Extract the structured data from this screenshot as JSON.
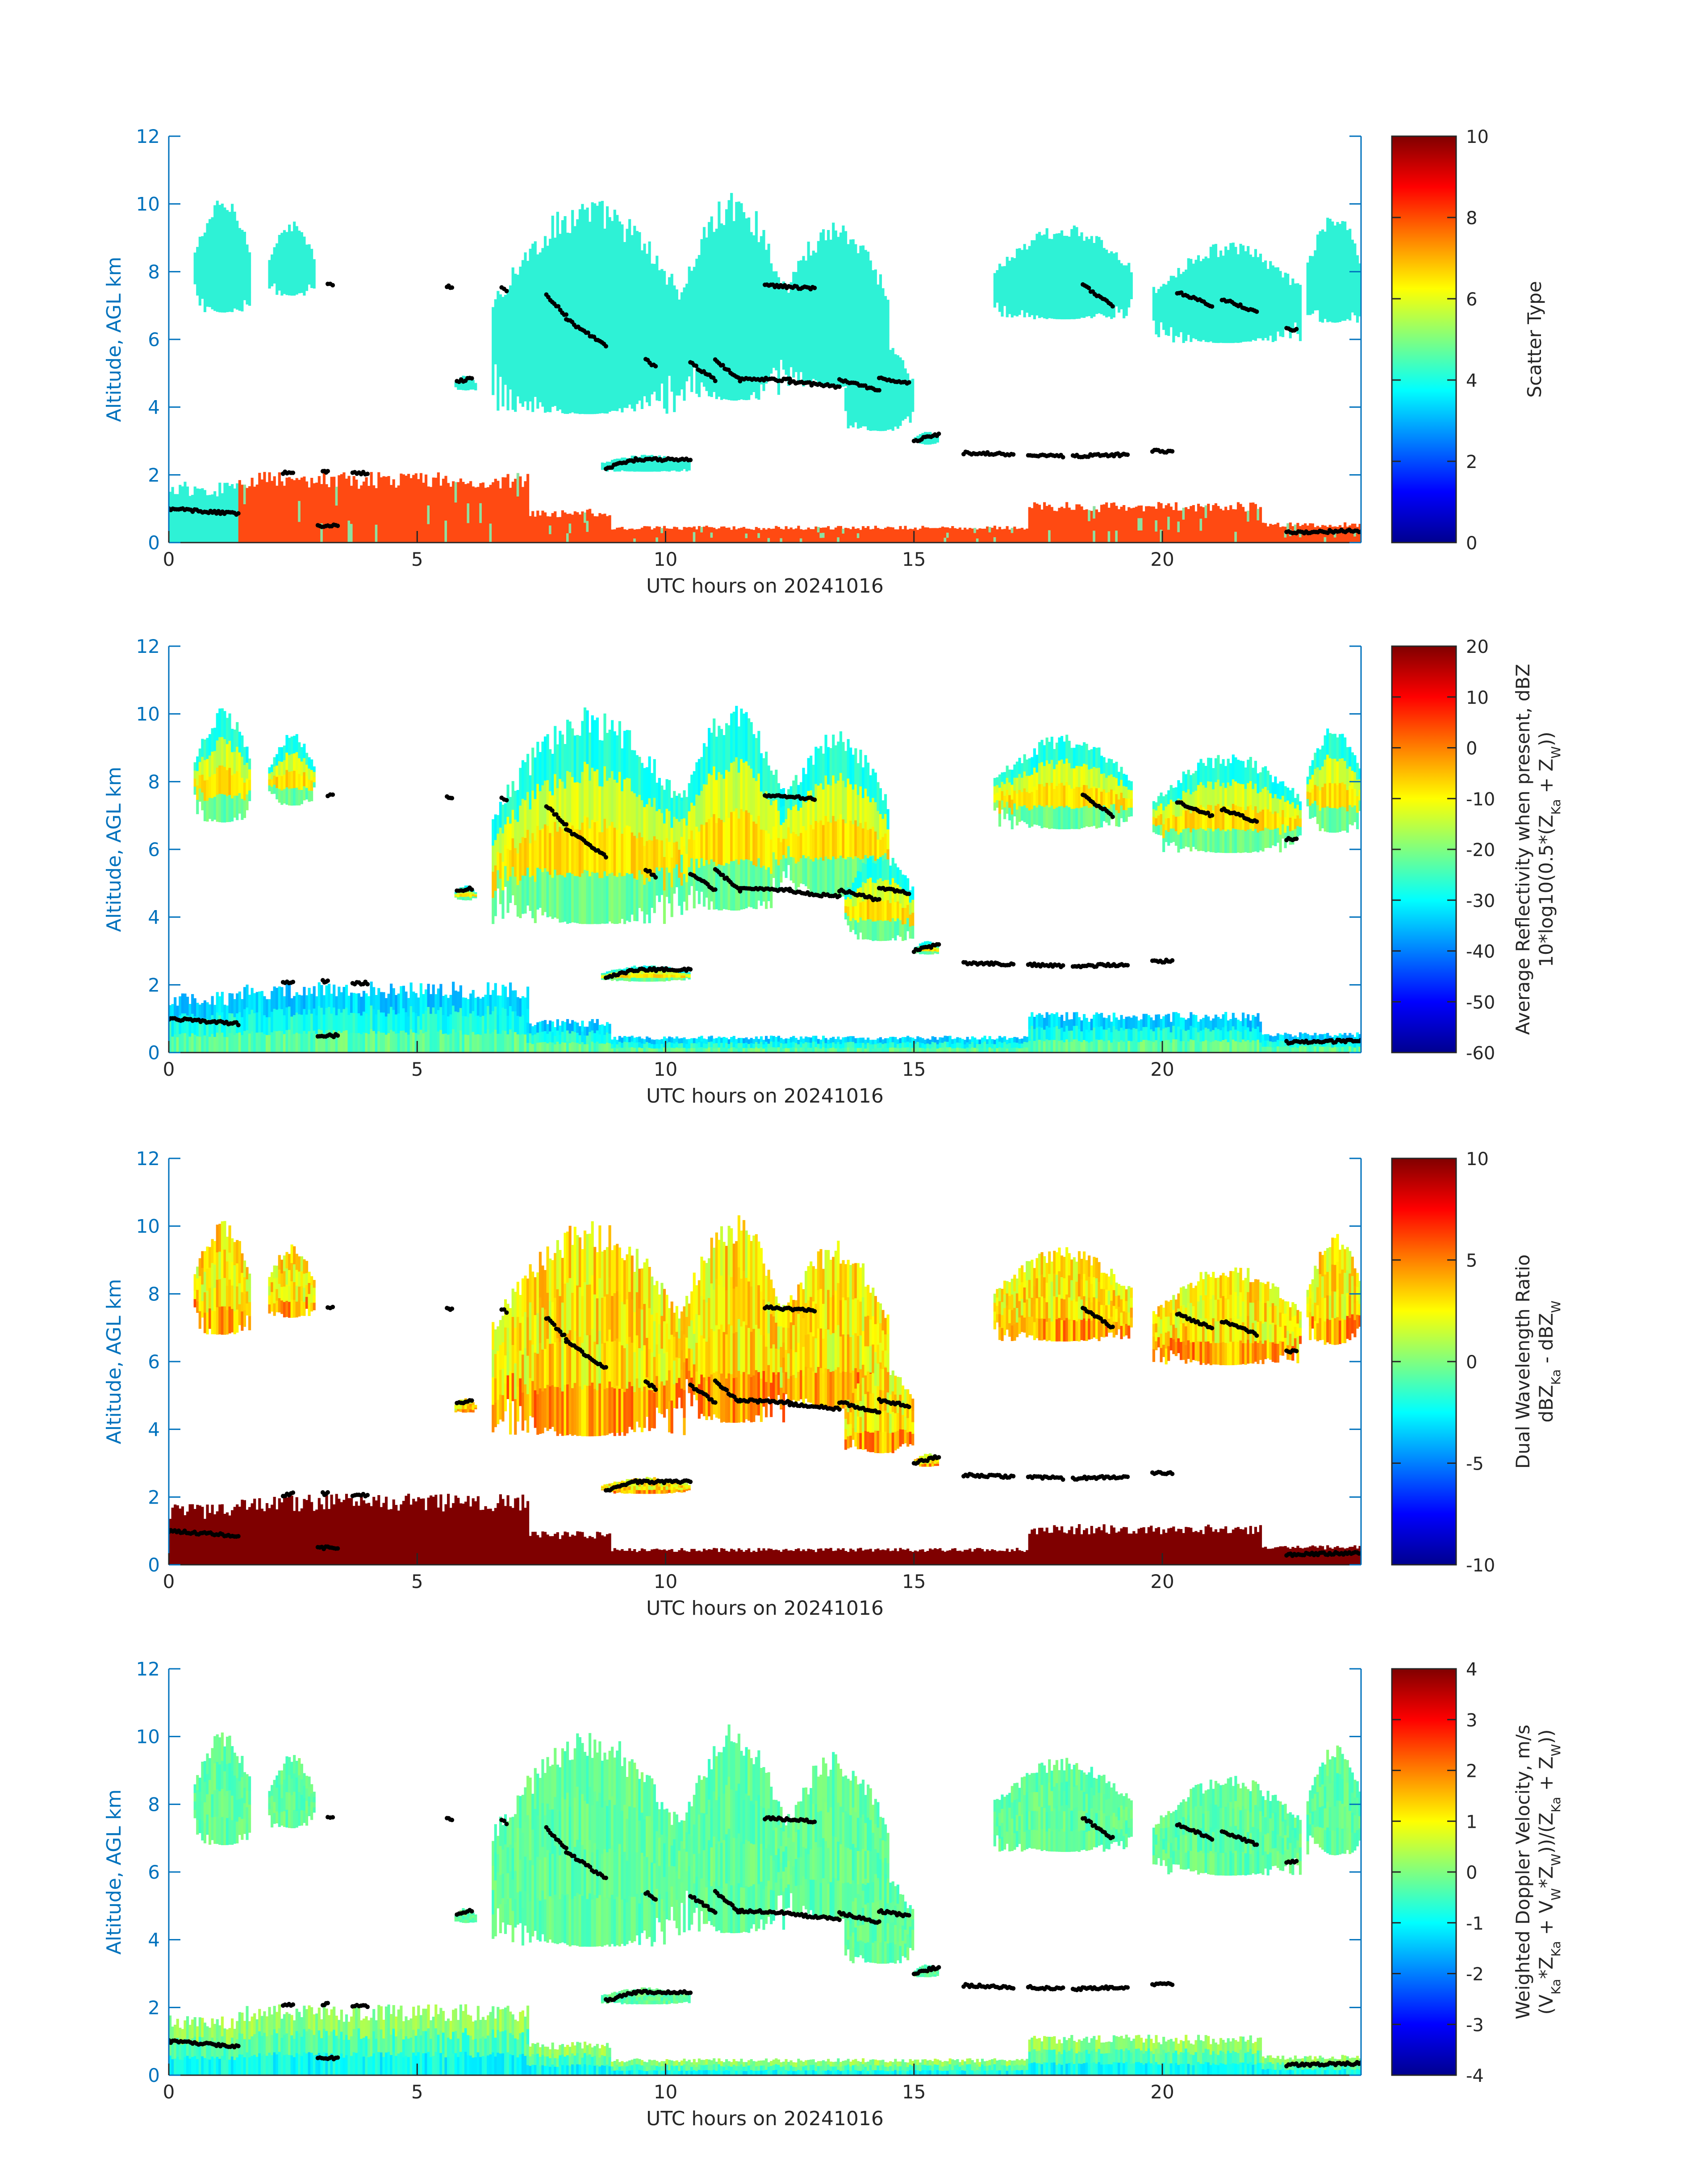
{
  "palette": {
    "axis_blue": "#0072bd",
    "cloud_cyan": "#2ef2d6",
    "precip_orange": "#ff4a12",
    "marker": "#000000"
  },
  "colormap": "jet",
  "chart_data": [
    {
      "type": "heatmap",
      "title": "",
      "xlabel": "UTC hours on 20241016",
      "ylabel": "Altitude, AGL km",
      "xlim": [
        0,
        24
      ],
      "ylim": [
        0,
        12
      ],
      "xticks": [
        0,
        5,
        10,
        15,
        20
      ],
      "yticks": [
        0,
        2,
        4,
        6,
        8,
        10,
        12
      ],
      "colorbar": {
        "label": "Scatter Type",
        "label_lines": [
          "Scatter Type"
        ],
        "ticks": [
          0,
          2,
          4,
          6,
          8,
          10
        ],
        "range": [
          0,
          10
        ]
      },
      "mode": "scatter_type"
    },
    {
      "type": "heatmap",
      "title": "",
      "xlabel": "UTC hours on 20241016",
      "ylabel": "Altitude, AGL km",
      "xlim": [
        0,
        24
      ],
      "ylim": [
        0,
        12
      ],
      "xticks": [
        0,
        5,
        10,
        15,
        20
      ],
      "yticks": [
        0,
        2,
        4,
        6,
        8,
        10,
        12
      ],
      "colorbar": {
        "label": "Average Reflectivity when present, dBZ 10*log10(0.5*(ZKa + ZW))",
        "label_lines": [
          "Average Reflectivity when present, dBZ",
          "10*log10(0.5*(Z_Ka + Z_W))"
        ],
        "ticks": [
          -60,
          -50,
          -40,
          -30,
          -20,
          -10,
          0,
          10,
          20
        ],
        "range": [
          -60,
          20
        ]
      },
      "mode": "reflectivity"
    },
    {
      "type": "heatmap",
      "title": "",
      "xlabel": "UTC hours on 20241016",
      "ylabel": "Altitude, AGL km",
      "xlim": [
        0,
        24
      ],
      "ylim": [
        0,
        12
      ],
      "xticks": [
        0,
        5,
        10,
        15,
        20
      ],
      "yticks": [
        0,
        2,
        4,
        6,
        8,
        10,
        12
      ],
      "colorbar": {
        "label": "Dual Wavelength Ratio dBZKa - dBZW",
        "label_lines": [
          "Dual Wavelength Ratio",
          "dBZ_Ka - dBZ_W"
        ],
        "ticks": [
          -10,
          -5,
          0,
          5,
          10
        ],
        "range": [
          -10,
          10
        ]
      },
      "mode": "dwr"
    },
    {
      "type": "heatmap",
      "title": "",
      "xlabel": "UTC hours on 20241016",
      "ylabel": "Altitude, AGL km",
      "xlim": [
        0,
        24
      ],
      "ylim": [
        0,
        12
      ],
      "xticks": [
        0,
        5,
        10,
        15,
        20
      ],
      "yticks": [
        0,
        2,
        4,
        6,
        8,
        10,
        12
      ],
      "colorbar": {
        "label": "Weighted Doppler Velocity, m/s (VKa*ZKa + VW*ZW))/(ZKa + ZW))",
        "label_lines": [
          "Weighted Doppler Velocity, m/s",
          "(V_Ka*Z_Ka + V_W*Z_W))/(Z_Ka + Z_W))"
        ],
        "ticks": [
          -4,
          -3,
          -2,
          -1,
          0,
          1,
          2,
          3,
          4
        ],
        "range": [
          -4,
          4
        ]
      },
      "mode": "velocity"
    }
  ],
  "cloud_regions": [
    {
      "name": "cirrus-early",
      "t0": 0.5,
      "t1": 1.65,
      "bottom": 6.8,
      "top": 10.2
    },
    {
      "name": "cirrus-2h",
      "t0": 2.0,
      "t1": 2.9,
      "bottom": 7.3,
      "top": 9.5
    },
    {
      "name": "small-6h",
      "t0": 5.75,
      "t1": 6.15,
      "bottom": 4.5,
      "top": 4.95
    },
    {
      "name": "main-7-10",
      "t0": 6.5,
      "t1": 10.4,
      "bottom": 3.8,
      "top": 10.2
    },
    {
      "name": "main-10-12",
      "t0": 10.3,
      "t1": 12.4,
      "bottom": 4.2,
      "top": 10.4
    },
    {
      "name": "main-12-14",
      "t0": 12.3,
      "t1": 14.5,
      "bottom": 4.6,
      "top": 9.6
    },
    {
      "name": "mid-14-15",
      "t0": 13.6,
      "t1": 15.0,
      "bottom": 3.3,
      "top": 6.0
    },
    {
      "name": "small-15h",
      "t0": 15.0,
      "t1": 15.5,
      "bottom": 2.9,
      "top": 3.3
    },
    {
      "name": "cirrus-17-19",
      "t0": 16.6,
      "t1": 19.4,
      "bottom": 6.6,
      "top": 9.4
    },
    {
      "name": "cirrus-19-22",
      "t0": 19.8,
      "t1": 22.8,
      "bottom": 5.9,
      "top": 8.9
    },
    {
      "name": "cirrus-23-24",
      "t0": 22.9,
      "t1": 24.0,
      "bottom": 6.5,
      "top": 9.8
    },
    {
      "name": "layer-2.4km",
      "t0": 8.7,
      "t1": 10.5,
      "bottom": 2.1,
      "top": 2.6
    }
  ],
  "precip_regions": [
    {
      "name": "boundary-early",
      "t0": 0.0,
      "t1": 1.4,
      "top": 1.8
    },
    {
      "name": "boundary-morning",
      "t0": 1.4,
      "t1": 7.2,
      "top": 2.1
    },
    {
      "name": "boundary-8h",
      "t0": 7.2,
      "t1": 8.9,
      "top": 1.0
    },
    {
      "name": "shallow-10-17",
      "t0": 8.9,
      "t1": 17.3,
      "top": 0.5
    },
    {
      "name": "boundary-18-22",
      "t0": 17.3,
      "t1": 22.0,
      "top": 1.2
    },
    {
      "name": "shallow-22-24",
      "t0": 22.0,
      "t1": 24.0,
      "top": 0.6
    }
  ],
  "marker_segments": [
    {
      "t0": 0.0,
      "t1": 1.4,
      "h0": 1.0,
      "h1": 0.85
    },
    {
      "t0": 2.3,
      "t1": 2.5,
      "h0": 2.05,
      "h1": 2.1
    },
    {
      "t0": 3.1,
      "t1": 3.2,
      "h0": 2.1,
      "h1": 2.1
    },
    {
      "t0": 3.7,
      "t1": 4.0,
      "h0": 2.05,
      "h1": 2.05
    },
    {
      "t0": 3.2,
      "t1": 3.3,
      "h0": 7.6,
      "h1": 7.6
    },
    {
      "t0": 5.6,
      "t1": 5.7,
      "h0": 7.55,
      "h1": 7.55
    },
    {
      "t0": 5.8,
      "t1": 6.1,
      "h0": 4.75,
      "h1": 4.85
    },
    {
      "t0": 6.7,
      "t1": 6.8,
      "h0": 7.55,
      "h1": 7.45
    },
    {
      "t0": 7.6,
      "t1": 8.0,
      "h0": 7.3,
      "h1": 6.7
    },
    {
      "t0": 8.0,
      "t1": 8.8,
      "h0": 6.6,
      "h1": 5.8
    },
    {
      "t0": 8.8,
      "t1": 9.4,
      "h0": 2.2,
      "h1": 2.45
    },
    {
      "t0": 9.4,
      "t1": 10.5,
      "h0": 2.45,
      "h1": 2.45
    },
    {
      "t0": 9.6,
      "t1": 9.8,
      "h0": 5.4,
      "h1": 5.2
    },
    {
      "t0": 10.5,
      "t1": 11.0,
      "h0": 5.3,
      "h1": 4.8
    },
    {
      "t0": 11.0,
      "t1": 11.5,
      "h0": 5.4,
      "h1": 4.8
    },
    {
      "t0": 11.5,
      "t1": 12.5,
      "h0": 4.85,
      "h1": 4.8
    },
    {
      "t0": 12.5,
      "t1": 13.5,
      "h0": 4.75,
      "h1": 4.6
    },
    {
      "t0": 13.5,
      "t1": 14.3,
      "h0": 4.8,
      "h1": 4.5
    },
    {
      "t0": 14.3,
      "t1": 14.9,
      "h0": 4.85,
      "h1": 4.7
    },
    {
      "t0": 12.0,
      "t1": 13.0,
      "h0": 7.6,
      "h1": 7.5
    },
    {
      "t0": 15.0,
      "t1": 15.5,
      "h0": 3.0,
      "h1": 3.2
    },
    {
      "t0": 16.0,
      "t1": 17.0,
      "h0": 2.65,
      "h1": 2.6
    },
    {
      "t0": 17.3,
      "t1": 18.0,
      "h0": 2.6,
      "h1": 2.55
    },
    {
      "t0": 18.2,
      "t1": 19.3,
      "h0": 2.55,
      "h1": 2.6
    },
    {
      "t0": 19.8,
      "t1": 20.2,
      "h0": 2.7,
      "h1": 2.7
    },
    {
      "t0": 18.4,
      "t1": 19.0,
      "h0": 7.6,
      "h1": 7.0
    },
    {
      "t0": 20.3,
      "t1": 21.0,
      "h0": 7.4,
      "h1": 7.0
    },
    {
      "t0": 21.2,
      "t1": 21.9,
      "h0": 7.2,
      "h1": 6.8
    },
    {
      "t0": 22.5,
      "t1": 22.7,
      "h0": 6.3,
      "h1": 6.3
    },
    {
      "t0": 3.0,
      "t1": 3.4,
      "h0": 0.5,
      "h1": 0.5
    },
    {
      "t0": 22.5,
      "t1": 24.0,
      "h0": 0.3,
      "h1": 0.35
    }
  ]
}
